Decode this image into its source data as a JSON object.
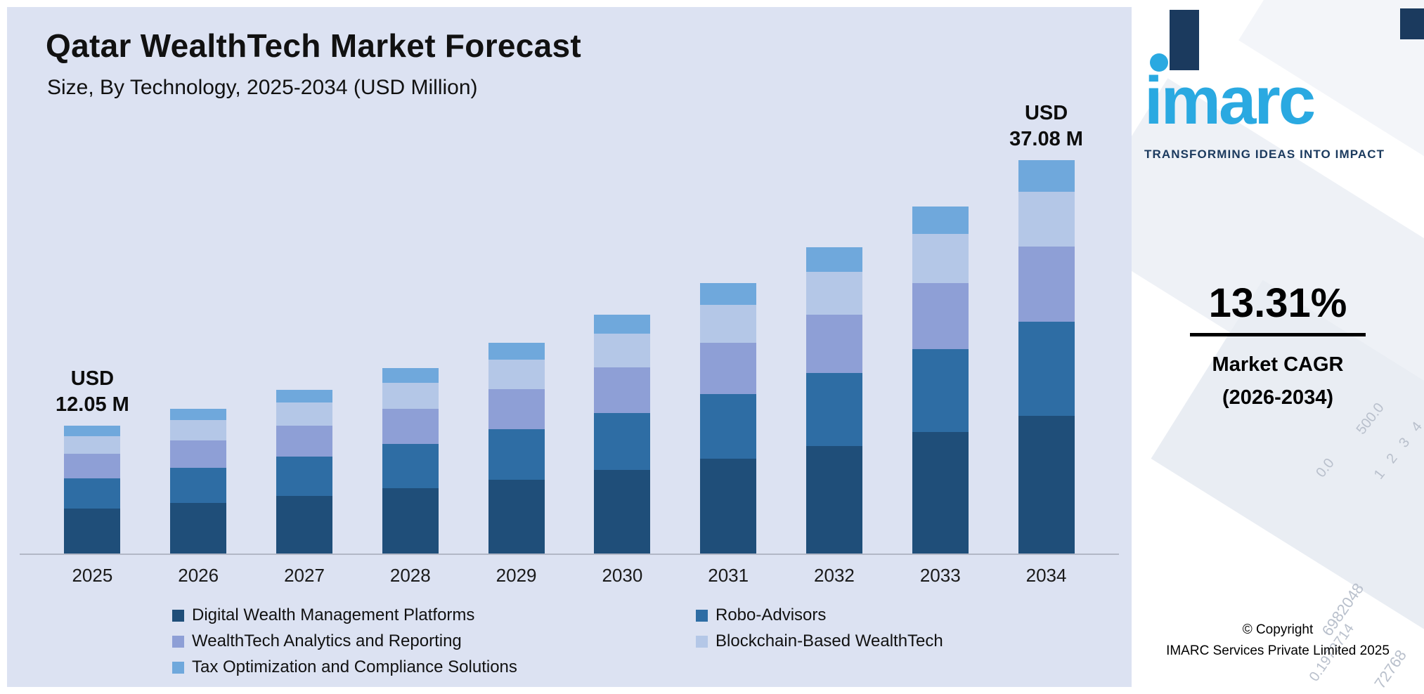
{
  "chart_panel": {
    "background": "#dce2f2",
    "title": "Qatar WealthTech Market Forecast",
    "subtitle": "Size, By Technology, 2025-2034 (USD Million)"
  },
  "chart_data": {
    "type": "bar",
    "stacked": true,
    "title": "Qatar WealthTech Market Forecast",
    "subtitle": "Size, By Technology, 2025-2034 (USD Million)",
    "unit": "USD Million",
    "xlabel": "",
    "ylabel": "",
    "ylim": [
      0,
      40
    ],
    "grid": false,
    "legend_position": "bottom",
    "categories": [
      "2025",
      "2026",
      "2027",
      "2028",
      "2029",
      "2030",
      "2031",
      "2032",
      "2033",
      "2034"
    ],
    "totals": [
      12.05,
      13.65,
      15.46,
      17.52,
      19.85,
      22.49,
      25.49,
      28.88,
      32.72,
      37.08
    ],
    "series": [
      {
        "name": "Digital Wealth Management Platforms",
        "color": "#1f4e79",
        "values": [
          4.22,
          4.78,
          5.41,
          6.14,
          6.95,
          7.87,
          8.92,
          10.11,
          11.45,
          12.98
        ]
      },
      {
        "name": "Robo-Advisors",
        "color": "#2e6da4",
        "values": [
          2.89,
          3.28,
          3.71,
          4.2,
          4.76,
          5.4,
          6.12,
          6.93,
          7.85,
          8.9
        ]
      },
      {
        "name": "WealthTech Analytics and Reporting",
        "color": "#8e9fd6",
        "values": [
          2.29,
          2.59,
          2.94,
          3.33,
          3.77,
          4.27,
          4.84,
          5.49,
          6.22,
          7.05
        ]
      },
      {
        "name": "Blockchain-Based WealthTech",
        "color": "#b4c7e7",
        "values": [
          1.69,
          1.91,
          2.16,
          2.45,
          2.78,
          3.15,
          3.57,
          4.04,
          4.58,
          5.19
        ]
      },
      {
        "name": "Tax Optimization and Compliance Solutions",
        "color": "#6fa8dc",
        "values": [
          0.96,
          1.09,
          1.24,
          1.4,
          1.59,
          1.8,
          2.04,
          2.31,
          2.62,
          2.96
        ]
      }
    ],
    "annotations": [
      {
        "category": "2025",
        "lines": [
          "USD",
          "12.05 M"
        ]
      },
      {
        "category": "2034",
        "lines": [
          "USD",
          "37.08 M"
        ]
      }
    ]
  },
  "legend": {
    "items": [
      {
        "label": "Digital Wealth Management Platforms",
        "color": "#1f4e79"
      },
      {
        "label": "Robo-Advisors",
        "color": "#2e6da4"
      },
      {
        "label": "WealthTech Analytics and Reporting",
        "color": "#8e9fd6"
      },
      {
        "label": "Blockchain-Based WealthTech",
        "color": "#b4c7e7"
      },
      {
        "label": "Tax Optimization and Compliance Solutions",
        "color": "#6fa8dc"
      }
    ]
  },
  "sidebar": {
    "logo_text": "imarc",
    "tagline": "TRANSFORMING IDEAS INTO IMPACT",
    "brand_blue": "#2aa9e1",
    "brand_navy": "#1b3a5e",
    "stat_value": "13.31%",
    "stat_label_line1": "Market CAGR",
    "stat_label_line2": "(2026-2034)",
    "copyright_line1": "© Copyright",
    "copyright_line2": "IMARC Services Private Limited 2025",
    "watermarks": [
      "500.0",
      "0.0",
      "1 2 3 4",
      "6982048",
      "0.1972714",
      "72768"
    ]
  }
}
